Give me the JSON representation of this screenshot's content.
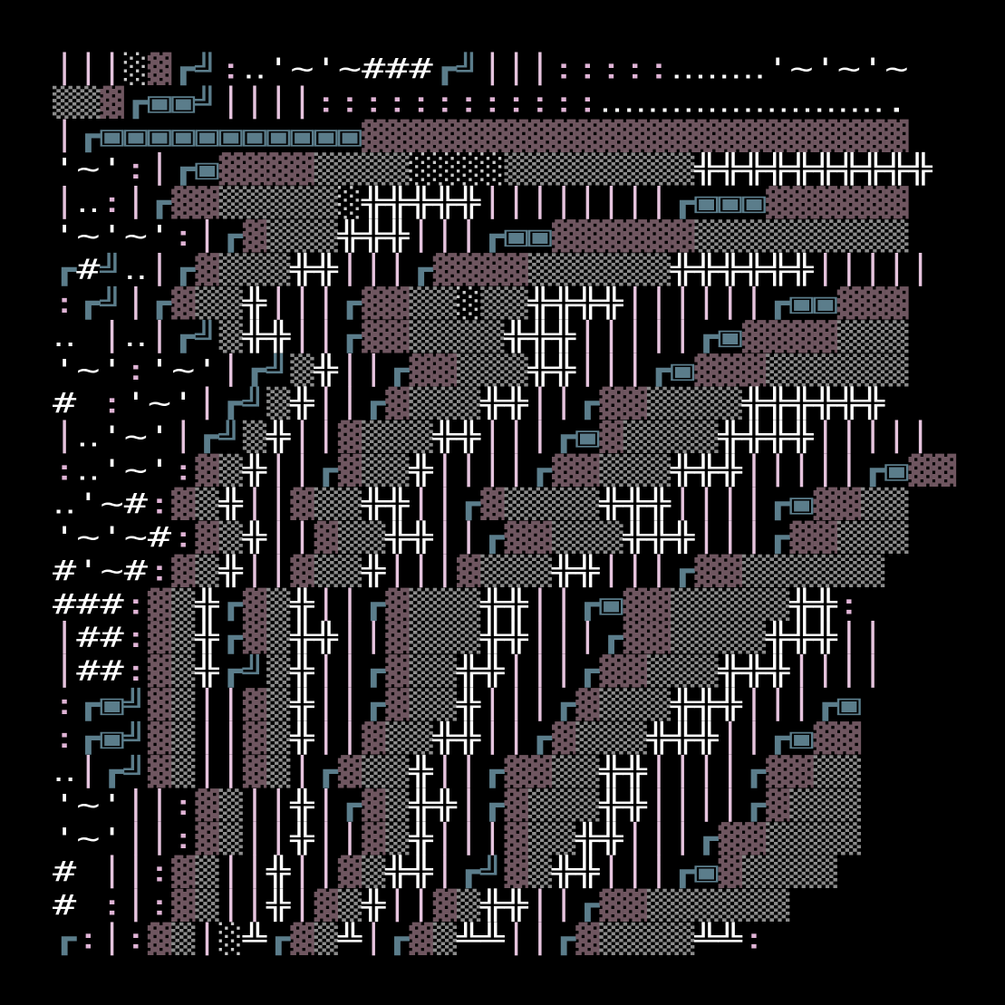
{
  "rows": [
    "│││░▓┏╝:‥'~'~###┏╝│││:::::‥‥‥‥'~'~'~",
    "▒▒▓┏▣▣╝││││::::::::::::‥‥‥‥‥‥‥‥‥‥‥‥.",
    "│┏▣▣▣▣▣▣▣▣▣▣▣▓▓▓▓▓▓▓▓▓▓▓▓▓▓▓▓▓▓▓▓▓▓▓",
    "'~':│┏▣▓▓▓▓▒▒▒▒░░░░▒▒▒▒▒▒▒▒╬╬╬╬╬╬╬╬╬╬",
    "│‥:│┏▓▓▒▒▒▒▒░╬╬╬╬╬││││││││┏▣▣▣▓▓▓▓▓▓",
    "'~'~':│┏▓▒▒▒╬╬╬│││┏▣▣▓▓▓▓▓▓▒▒▒▒▒▒▒▒▒",
    "┏#╝‥│┏▓▒▒▒╬╬│││┏▓▓▓▓▒▒▒▒▒▒╬╬╬╬╬╬│││││",
    ":┏╝│┏▓▒▒╬│││┏▓▓▒▒░▒▒╬╬╬╬││││││┏▣▣▓▓▓",
    "‥ │‥│┏╝▒╬╬││┏▓▓▒▒▒▒╬╬╬│││││┏▣▓▓▓▓▒▒▒",
    "'~':'~'│┏╝▒╬││┏▓▓▒▒▒╬╬│││┏▣▓▓▓▒▒▒▒▒▒",
    "# :'~'│┏╝▒╬││┏▓▒▒▒╬╬││┏▓▓▒▒▒▒╬╬╬╬╬╬",
    "│‥'~'│┏╝▒╬││▓▒▒▒╬╬│││┏▣▓▒▒▒▒╬╬╬╬│││││",
    ":‥'~':▓▒╬││┏▓▒▒╬││││┏▓▓▒▒▒╬╬╬│││││┏▣▓▓",
    "‥'~#:▓▒╬││▓▒▒╬╬││┏▓▒▒▒▒╬╬╬││││┏▣▓▓▒▒",
    "'~'~#:▓▒╬││▓▒▒╬╬││┏▓▓▒▒▒╬╬╬│││┏▓▓▒▒▒",
    "#'~#:▓▒╬││▓▒▒╬│││▓▒▒▒╬╬│││┏▓▓▒▒▒▒▒▒",
    "###:▓▒╬┏▓▒╬││┏▓▒▒▒╬╬││┏▣▓▓▒▒▒▒▒╬╬:",
    "│##:▓▒╬┏▓▒╬╬││▓▒▒▒╬╬│││┏▓▓▒▒▒▒╬╬╬││",
    "│##:▓▒╬┏╝▒╬││┏▓▒▒╬╬│││┏▓▓▒▒▒╬╬╬││││",
    ":┏▣╝▓▒││▓▒╬││┏▓▒▒╬│││┏▓▒▒▒╬╬╬│││┏▣",
    ":┏▣╝▓▒││▓▒╬││▓▒▒╬╬││┏▓▒▒▒╬╬╬││┏▣▓▓",
    "‥│┏╝▓▒││▓▒│┏▓▒▒╬││┏▓▓▒▒╬╬││││┏▓▓▒▒",
    "'~'││:▓▒││╬│┏▓▒╬╬│┏▓▒▒▒╬╬││││┏▓▒▒▒",
    "'~'││:▓▒││╬││▓▒╬│││▓▒▒╬╬│││┏▓▓▒▒▒▒",
    "# ││:▓▒││╬││▓▒╬╬│┏╝▓▒╬╬│││┏▣▓▒▒▒▒",
    "# :│:▓▒││╬│▓▒╬││▓▒╬╬││┏▓▓▒▒▒▒▒▒",
    "┏:│:▓▒│░╩┏▓▒╩│┏▓▒╩╩││┏▓▒▒▒▒╩╩:"
  ],
  "colors": {
    "▓": "#6f5660",
    "▒": "#8c8c8c",
    "░": "#c8c8c8",
    "╬": "#ffffff",
    "╩": "#ffffff",
    "│": "#e6c4de",
    ":": "#e0b4d6",
    "┏": "#5b7d8b",
    "╝": "#5b7d8b",
    "▣": "#5b7d8b"
  },
  "default_color": "#ffffff"
}
